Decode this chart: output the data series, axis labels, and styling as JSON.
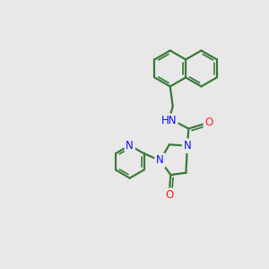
{
  "background_color": "#e8e8e8",
  "bond_color": "#3a7a3a",
  "bond_width": 1.6,
  "atom_colors": {
    "N": "#1010ff",
    "O": "#ff2020",
    "C": "#000000"
  },
  "font_size_atom": 8.5
}
